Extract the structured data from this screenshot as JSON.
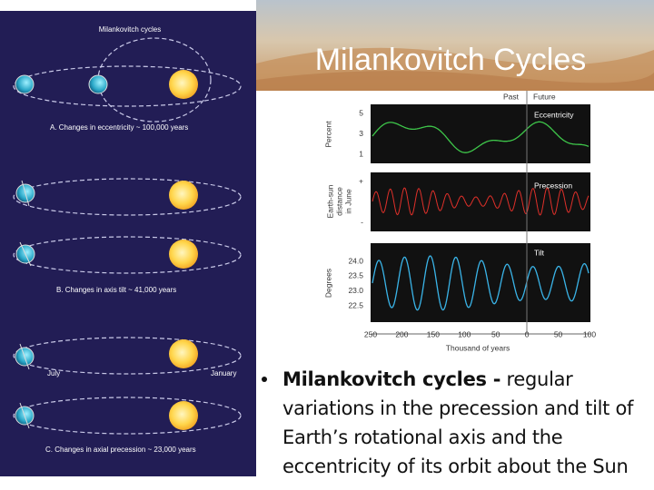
{
  "title": "Milankovitch Cycles",
  "left_panel": {
    "title": "Milankovitch cycles",
    "captions": [
      "A. Changes in eccentricity ~ 100,000 years",
      "B. Changes in axis tilt ~ 41,000 years",
      "C. Changes in axial precession ~ 23,000 years"
    ],
    "july": "July",
    "january": "January"
  },
  "figure": {
    "past": "Past",
    "future": "Future",
    "panels": [
      {
        "label": "Eccentricity",
        "axis_label": [
          "Percent"
        ],
        "ticks": [
          "5",
          "3",
          "1"
        ]
      },
      {
        "label": "Precession",
        "axis_label": [
          "Earth-sun",
          "distance",
          "in June"
        ],
        "ticks": [
          "+",
          "-"
        ]
      },
      {
        "label": "Tilt",
        "axis_label": [
          "Degrees"
        ],
        "ticks": [
          "24.0",
          "23.5",
          "23.0",
          "22.5"
        ]
      }
    ],
    "x_ticks": [
      "250",
      "200",
      "150",
      "100",
      "50",
      "0",
      "50",
      "100"
    ],
    "x_label": "Thousand of years"
  },
  "bullet": {
    "term": "Milankovitch cycles -",
    "text": "regular variations in the precession and tilt of Earth’s rotational axis and the eccentricity of its orbit about the Sun"
  }
}
